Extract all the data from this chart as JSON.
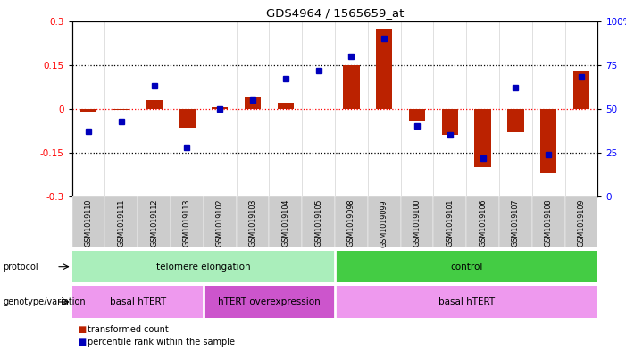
{
  "title": "GDS4964 / 1565659_at",
  "samples": [
    "GSM1019110",
    "GSM1019111",
    "GSM1019112",
    "GSM1019113",
    "GSM1019102",
    "GSM1019103",
    "GSM1019104",
    "GSM1019105",
    "GSM1019098",
    "GSM1019099",
    "GSM1019100",
    "GSM1019101",
    "GSM1019106",
    "GSM1019107",
    "GSM1019108",
    "GSM1019109"
  ],
  "transformed_count": [
    -0.01,
    -0.005,
    0.03,
    -0.065,
    0.005,
    0.04,
    0.02,
    0.0,
    0.15,
    0.27,
    -0.04,
    -0.09,
    -0.2,
    -0.08,
    -0.22,
    0.13
  ],
  "percentile_rank": [
    37,
    43,
    63,
    28,
    50,
    55,
    67,
    72,
    80,
    90,
    40,
    35,
    22,
    62,
    24,
    68
  ],
  "protocol_groups": [
    {
      "label": "telomere elongation",
      "start": 0,
      "end": 8,
      "color": "#AAEEBB"
    },
    {
      "label": "control",
      "start": 8,
      "end": 16,
      "color": "#44CC44"
    }
  ],
  "genotype_groups": [
    {
      "label": "basal hTERT",
      "start": 0,
      "end": 4,
      "color": "#EE99EE"
    },
    {
      "label": "hTERT overexpression",
      "start": 4,
      "end": 8,
      "color": "#CC55CC"
    },
    {
      "label": "basal hTERT",
      "start": 8,
      "end": 16,
      "color": "#EE99EE"
    }
  ],
  "ylim": [
    -0.3,
    0.3
  ],
  "yticks_left": [
    -0.3,
    -0.15,
    0.0,
    0.15,
    0.3
  ],
  "ytick_labels_left": [
    "-0.3",
    "-0.15",
    "0",
    "0.15",
    "0.3"
  ],
  "ytick_labels_right": [
    "0",
    "25",
    "50",
    "75",
    "100%"
  ],
  "bar_color": "#BB2200",
  "dot_color": "#0000BB",
  "legend_items": [
    "transformed count",
    "percentile rank within the sample"
  ],
  "bg_color": "#FFFFFF"
}
